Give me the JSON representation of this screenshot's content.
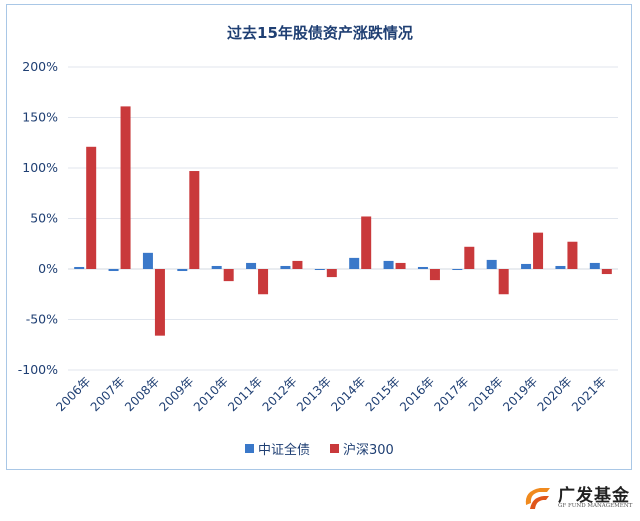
{
  "chart_data": {
    "type": "bar",
    "title": "过去15年股债资产涨跌情况",
    "categories": [
      "2006年",
      "2007年",
      "2008年",
      "2009年",
      "2010年",
      "2011年",
      "2012年",
      "2013年",
      "2014年",
      "2015年",
      "2016年",
      "2017年",
      "2018年",
      "2019年",
      "2020年",
      "2021年"
    ],
    "series": [
      {
        "name": "中证全债",
        "color": "#3a78c9",
        "values": [
          2,
          -2,
          16,
          -2,
          3,
          6,
          3,
          -1,
          11,
          8,
          2,
          -1,
          9,
          5,
          3,
          6
        ]
      },
      {
        "name": "沪深300",
        "color": "#c9393b",
        "values": [
          121,
          161,
          -66,
          97,
          -12,
          -25,
          8,
          -8,
          52,
          6,
          -11,
          22,
          -25,
          36,
          27,
          -5
        ]
      }
    ],
    "yticks": [
      "200%",
      "150%",
      "100%",
      "50%",
      "0%",
      "-50%",
      "-100%"
    ],
    "ylim": [
      -100,
      200
    ],
    "legend_position": "bottom"
  },
  "brand": {
    "name": "广发基金",
    "subtitle": "GF FUND MANAGEMENT",
    "icon": "gf-logo-icon",
    "color": "#e8721c"
  }
}
